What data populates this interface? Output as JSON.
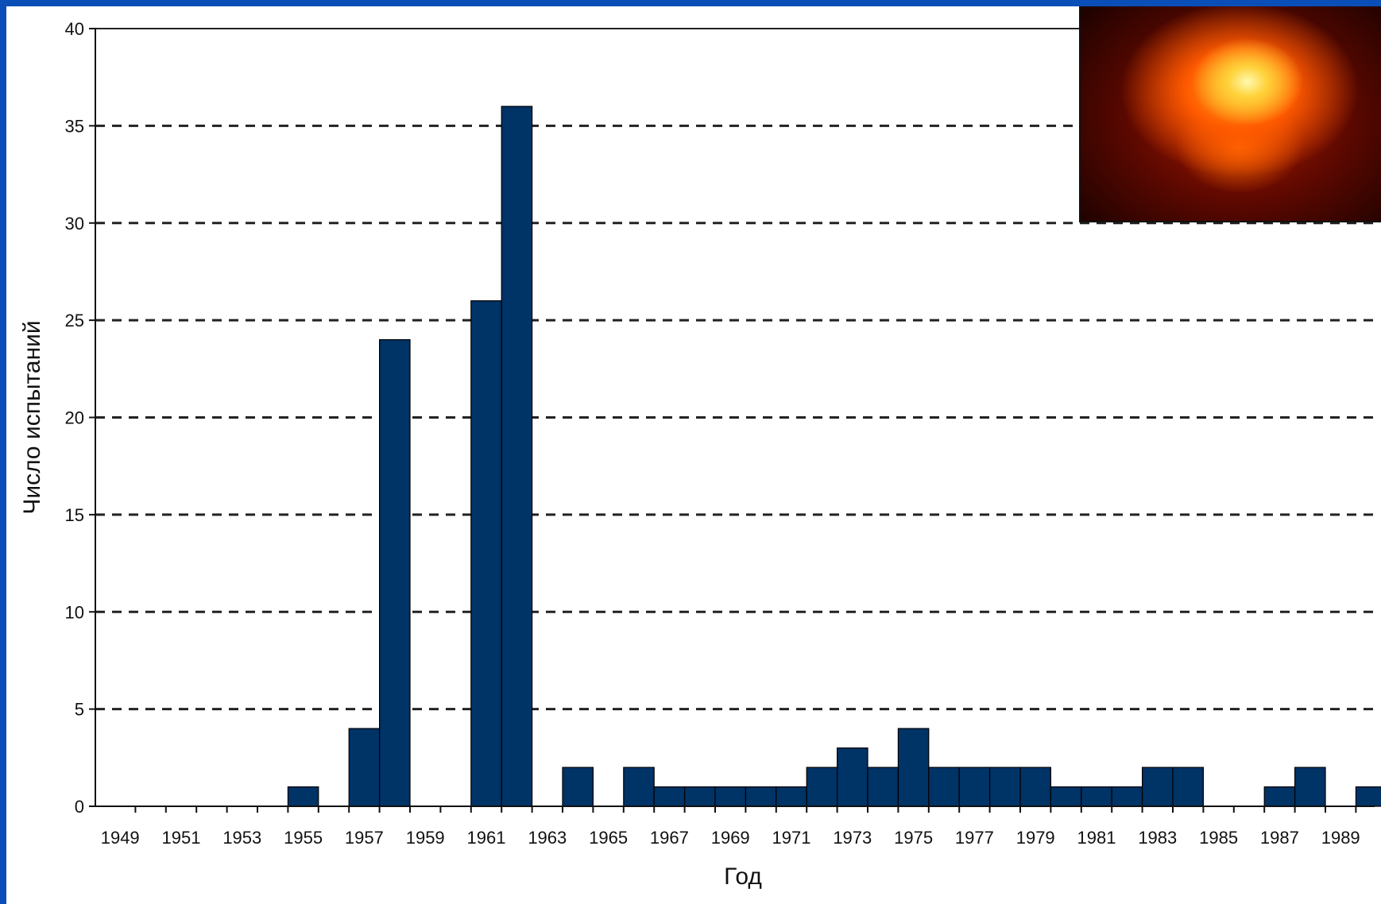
{
  "chart_data": {
    "type": "bar",
    "title": "",
    "xlabel": "Год",
    "ylabel": "Число испытаний",
    "ylim": [
      0,
      40
    ],
    "yticks": [
      0,
      5,
      10,
      15,
      20,
      25,
      30,
      35,
      40
    ],
    "grid": "dashed horizontal",
    "categories": [
      "1949",
      "1950",
      "1951",
      "1952",
      "1953",
      "1954",
      "1955",
      "1956",
      "1957",
      "1958",
      "1959",
      "1960",
      "1961",
      "1962",
      "1963",
      "1964",
      "1965",
      "1966",
      "1967",
      "1968",
      "1969",
      "1970",
      "1971",
      "1972",
      "1973",
      "1974",
      "1975",
      "1976",
      "1977",
      "1978",
      "1979",
      "1980",
      "1981",
      "1982",
      "1983",
      "1984",
      "1985",
      "1986",
      "1987",
      "1988",
      "1989",
      "1990"
    ],
    "xtick_labels": [
      "1949",
      "1951",
      "1953",
      "1955",
      "1957",
      "1959",
      "1961",
      "1963",
      "1965",
      "1967",
      "1969",
      "1971",
      "1973",
      "1975",
      "1977",
      "1979",
      "1981",
      "1983",
      "1985",
      "1987",
      "1989"
    ],
    "values": [
      0,
      0,
      0,
      0,
      0,
      0,
      1,
      0,
      4,
      24,
      0,
      0,
      26,
      36,
      0,
      2,
      0,
      2,
      1,
      1,
      1,
      1,
      1,
      2,
      3,
      2,
      4,
      2,
      2,
      2,
      2,
      1,
      1,
      1,
      2,
      2,
      0,
      0,
      1,
      2,
      0,
      1
    ],
    "bar_color": "#003366"
  },
  "photo": {
    "icon": "nuclear-explosion-photo",
    "colors": [
      "#ffd23a",
      "#ff5a00",
      "#b01a00",
      "#200200"
    ]
  }
}
